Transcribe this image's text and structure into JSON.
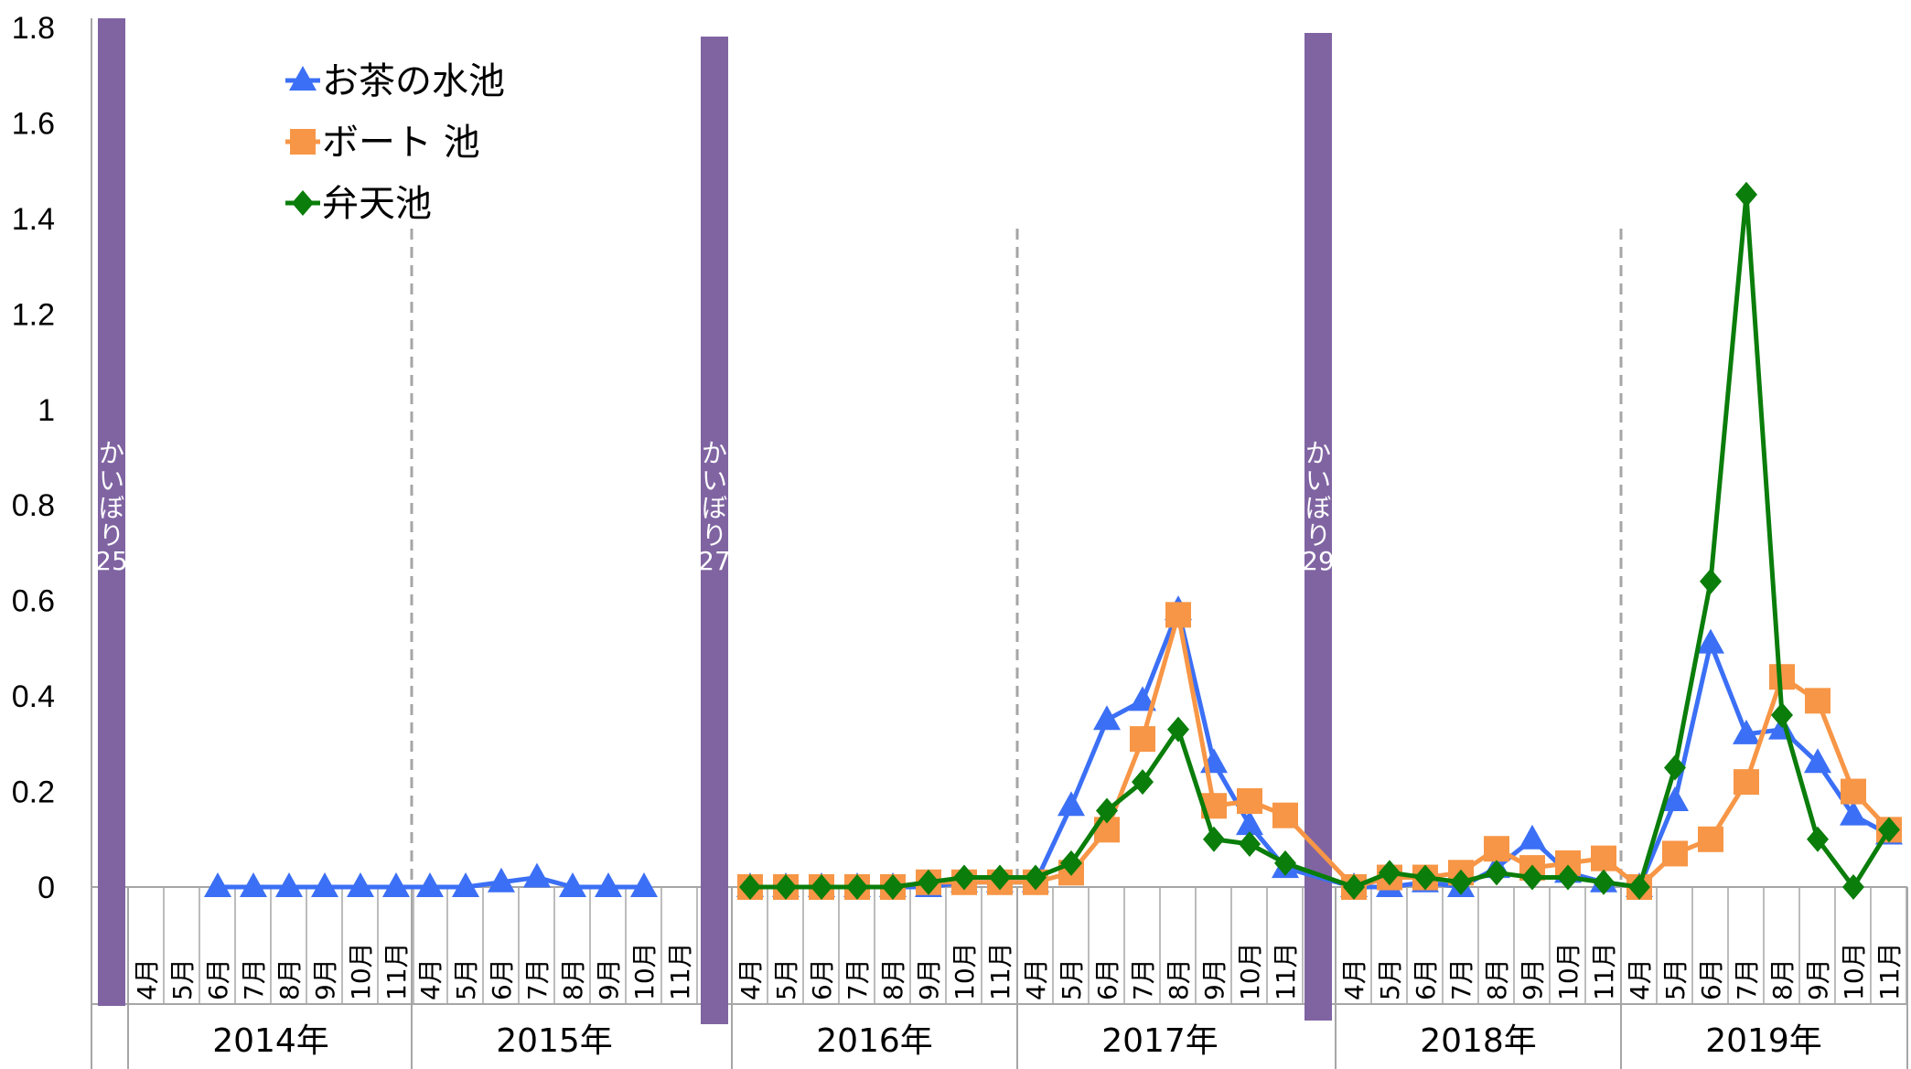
{
  "chart_data": {
    "type": "line",
    "ylim": [
      0,
      1.8
    ],
    "yticks": [
      "1.8",
      "1.6",
      "1.4",
      "1.2",
      "1",
      "0.8",
      "0.6",
      "0.4",
      "0.2",
      "0"
    ],
    "years": [
      {
        "label": "2014年",
        "months": [
          "4月",
          "5月",
          "6月",
          "7月",
          "8月",
          "9月",
          "10月",
          "11月"
        ]
      },
      {
        "label": "2015年",
        "months": [
          "4月",
          "5月",
          "6月",
          "7月",
          "8月",
          "9月",
          "10月",
          "11月"
        ]
      },
      {
        "label": "2016年",
        "months": [
          "4月",
          "5月",
          "6月",
          "7月",
          "8月",
          "9月",
          "10月",
          "11月"
        ]
      },
      {
        "label": "2017年",
        "months": [
          "4月",
          "5月",
          "6月",
          "7月",
          "8月",
          "9月",
          "10月",
          "11月"
        ]
      },
      {
        "label": "2018年",
        "months": [
          "4月",
          "5月",
          "6月",
          "7月",
          "8月",
          "9月",
          "10月",
          "11月"
        ]
      },
      {
        "label": "2019年",
        "months": [
          "4月",
          "5月",
          "6月",
          "7月",
          "8月",
          "9月",
          "10月",
          "11月"
        ]
      }
    ],
    "kaibori": [
      {
        "text": "かいぼり",
        "num": "25"
      },
      {
        "text": "かいぼり",
        "num": "27"
      },
      {
        "text": "かいぼり",
        "num": "29"
      }
    ],
    "series": [
      {
        "name": "お茶の水池",
        "color": "#3b6ff5",
        "marker": "triangle",
        "values": [
          null,
          null,
          0,
          0,
          0,
          0,
          0,
          0,
          0,
          0,
          0.01,
          0.02,
          0,
          0,
          0,
          null,
          0,
          0,
          0,
          0,
          0,
          0,
          0.01,
          0.01,
          0.01,
          0.17,
          0.35,
          0.39,
          0.58,
          0.26,
          0.13,
          0.04,
          0,
          0,
          0.01,
          0,
          0.04,
          0.1,
          0.03,
          0.01,
          0,
          0.18,
          0.51,
          0.32,
          0.33,
          0.26,
          0.15,
          0.11
        ]
      },
      {
        "name": "ボート 池",
        "color": "#f79646",
        "marker": "square",
        "values": [
          null,
          null,
          null,
          null,
          null,
          null,
          null,
          null,
          null,
          null,
          null,
          null,
          null,
          null,
          null,
          null,
          0,
          0,
          0,
          0,
          0,
          0.01,
          0.01,
          0.01,
          0.01,
          0.03,
          0.12,
          0.31,
          0.57,
          0.17,
          0.18,
          0.15,
          0,
          0.02,
          0.02,
          0.03,
          0.08,
          0.04,
          0.05,
          0.06,
          0,
          0.07,
          0.1,
          0.22,
          0.44,
          0.39,
          0.2,
          0.12
        ]
      },
      {
        "name": "弁天池",
        "color": "#0a7d0a",
        "marker": "diamond",
        "values": [
          null,
          null,
          null,
          null,
          null,
          null,
          null,
          null,
          null,
          null,
          null,
          null,
          null,
          null,
          null,
          null,
          0,
          0,
          0,
          0,
          0,
          0.01,
          0.02,
          0.02,
          0.02,
          0.05,
          0.16,
          0.22,
          0.33,
          0.1,
          0.09,
          0.05,
          0,
          0.03,
          0.02,
          0.01,
          0.03,
          0.02,
          0.02,
          0.01,
          0,
          0.25,
          0.64,
          1.45,
          0.36,
          0.1,
          0,
          0.12
        ]
      }
    ]
  }
}
